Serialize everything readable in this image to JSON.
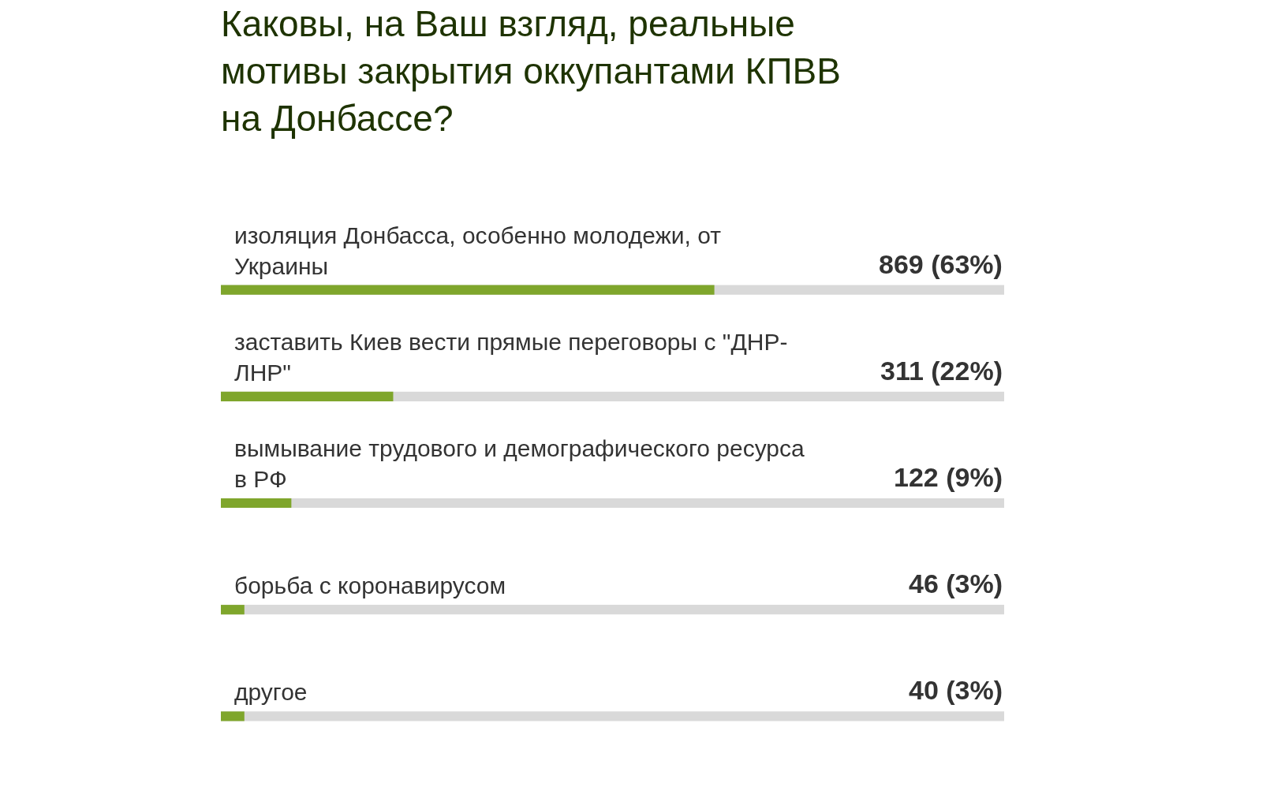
{
  "chart_data": {
    "type": "bar",
    "orientation": "horizontal",
    "title": "Каковы, на Ваш взгляд, реальные мотивы закрытия оккупантами КПВВ на Донбассе?",
    "categories": [
      "изоляция Донбасса, особенно молодежи, от Украины",
      "заставить Киев вести прямые переговоры с \"ДНР-ЛНР\"",
      "вымывание трудового и демографического ресурса в РФ",
      "борьба с коронавирусом",
      "другое"
    ],
    "values": [
      63,
      22,
      9,
      3,
      3
    ],
    "value_labels": [
      "869 (63%)",
      "311 (22%)",
      "122 (9%)",
      "46 (3%)",
      "40 (3%)"
    ],
    "color": "#7fa62c",
    "xlim": [
      0,
      100
    ],
    "tick_labels": false,
    "grid": false,
    "legend": false
  }
}
